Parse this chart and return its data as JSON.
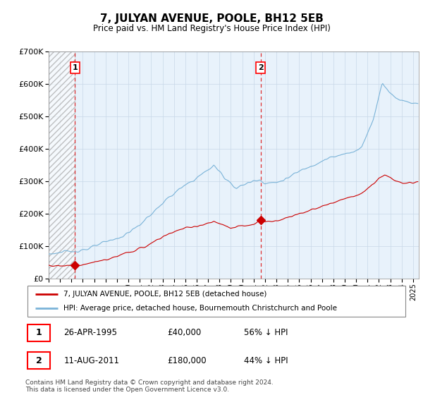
{
  "title": "7, JULYAN AVENUE, POOLE, BH12 5EB",
  "subtitle": "Price paid vs. HM Land Registry's House Price Index (HPI)",
  "ylim": [
    0,
    700000
  ],
  "yticks": [
    0,
    100000,
    200000,
    300000,
    400000,
    500000,
    600000,
    700000
  ],
  "xlim_start": 1993.0,
  "xlim_end": 2025.5,
  "transaction1": {
    "date_num": 1995.32,
    "price": 40000,
    "label": "1",
    "date_str": "26-APR-1995",
    "price_str": "£40,000",
    "note": "56% ↓ HPI"
  },
  "transaction2": {
    "date_num": 2011.62,
    "price": 180000,
    "label": "2",
    "date_str": "11-AUG-2011",
    "price_str": "£180,000",
    "note": "44% ↓ HPI"
  },
  "hpi_color": "#7ab3d8",
  "price_color": "#cc0000",
  "bg_color": "#e8f2fb",
  "grid_color": "#c8d8e8",
  "legend_line1": "7, JULYAN AVENUE, POOLE, BH12 5EB (detached house)",
  "legend_line2": "HPI: Average price, detached house, Bournemouth Christchurch and Poole",
  "footer": "Contains HM Land Registry data © Crown copyright and database right 2024.\nThis data is licensed under the Open Government Licence v3.0."
}
